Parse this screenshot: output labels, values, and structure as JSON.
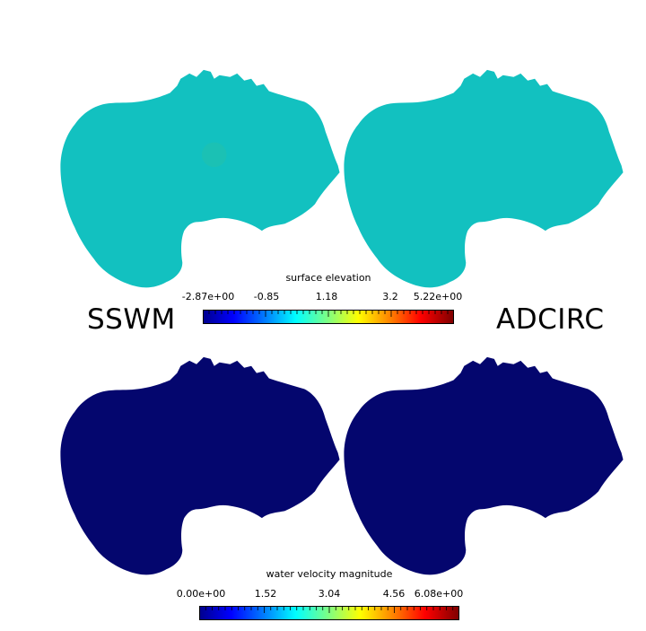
{
  "labels": {
    "left_model": "SSWM",
    "right_model": "ADCIRC"
  },
  "colorbars": {
    "elevation": {
      "title": "surface elevation",
      "ticks": [
        "-2.87e+00",
        "-0.85",
        "1.18",
        "3.2",
        "5.22e+00"
      ]
    },
    "velocity": {
      "title": "water velocity magnitude",
      "ticks": [
        "0.00e+00",
        "1.52",
        "3.04",
        "4.56",
        "6.08e+00"
      ]
    }
  },
  "colors": {
    "elevation_fill": "#12c1c0",
    "velocity_fill": "#04066e",
    "hotspot": "#2dc39d"
  }
}
